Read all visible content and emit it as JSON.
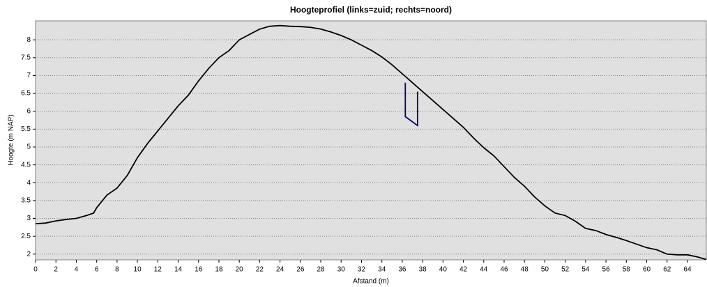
{
  "chart_data": {
    "type": "line",
    "title": "Hoogteprofiel (links=zuid; rechts=noord)",
    "x_label": "Afstand (m)",
    "y_label": "Hoogte (m NAP)",
    "xlim": [
      0,
      65.85
    ],
    "ylim": [
      1.84,
      8.53
    ],
    "xticks": [
      0,
      2,
      4,
      6,
      8,
      10,
      12,
      14,
      16,
      18,
      20,
      22,
      24,
      26,
      28,
      30,
      32,
      34,
      36,
      38,
      40,
      42,
      44,
      46,
      48,
      50,
      52,
      54,
      56,
      58,
      60,
      62,
      64
    ],
    "yticks": [
      2,
      2.5,
      3,
      3.5,
      4,
      4.5,
      5,
      5.5,
      6,
      6.5,
      7,
      7.5,
      8
    ],
    "grid": true,
    "series": [
      {
        "color": "#000000",
        "x": [
          0,
          1,
          2,
          3,
          4,
          5,
          5.7,
          6,
          7,
          8,
          9,
          10,
          11,
          12,
          13,
          14,
          15,
          16,
          17,
          18,
          19,
          20,
          21,
          22,
          23,
          24,
          25,
          26,
          27,
          28,
          29,
          30,
          31,
          32,
          33,
          34,
          35,
          36,
          37,
          38,
          39,
          40,
          41,
          42,
          43,
          44,
          45,
          46,
          47,
          48,
          49,
          50,
          51,
          52,
          53,
          54,
          55,
          56,
          57,
          58,
          59,
          60,
          61,
          62,
          63,
          64,
          65,
          65.85
        ],
        "values": [
          2.85,
          2.87,
          2.93,
          2.97,
          3.0,
          3.08,
          3.15,
          3.3,
          3.65,
          3.85,
          4.2,
          4.7,
          5.1,
          5.45,
          5.8,
          6.15,
          6.45,
          6.85,
          7.2,
          7.5,
          7.7,
          8.0,
          8.15,
          8.3,
          8.38,
          8.4,
          8.38,
          8.37,
          8.35,
          8.3,
          8.22,
          8.12,
          8.0,
          7.85,
          7.7,
          7.52,
          7.3,
          7.05,
          6.8,
          6.55,
          6.3,
          6.05,
          5.8,
          5.55,
          5.25,
          4.98,
          4.75,
          4.45,
          4.15,
          3.9,
          3.6,
          3.35,
          3.15,
          3.08,
          2.92,
          2.72,
          2.66,
          2.55,
          2.47,
          2.38,
          2.28,
          2.18,
          2.12,
          2.0,
          1.98,
          1.98,
          1.92,
          1.85
        ]
      },
      {
        "color": "#000080",
        "x": [
          36.3,
          36.3,
          37.5,
          37.5
        ],
        "values": [
          6.8,
          5.85,
          5.6,
          6.55
        ]
      }
    ]
  }
}
